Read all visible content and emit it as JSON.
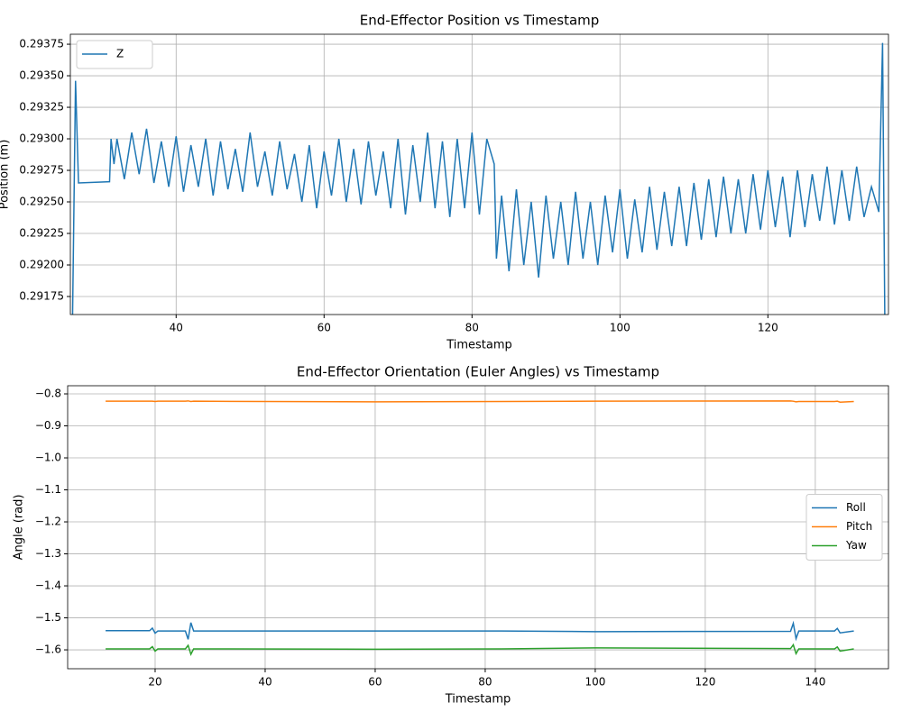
{
  "chart_data": [
    {
      "type": "line",
      "title": "End-Effector Position vs Timestamp",
      "x_label": "Timestamp",
      "y_label": "Position (m)",
      "xlim": [
        25.7,
        136.3
      ],
      "ylim": [
        0.291607,
        0.293829
      ],
      "grid": true,
      "legend": "upper left",
      "xticks": [
        40,
        60,
        80,
        100,
        120
      ],
      "yticks": [
        0.29175,
        {
          "value": 0.292,
          "label": "0.29200"
        },
        0.29225,
        {
          "value": 0.2925,
          "label": "0.29250"
        },
        0.29275,
        {
          "value": 0.293,
          "label": "0.29300"
        },
        0.29325,
        {
          "value": 0.2935,
          "label": "0.29350"
        },
        0.29375
      ],
      "x": [
        26.0,
        26.4,
        26.8,
        31.0,
        31.2,
        31.6,
        32,
        33,
        34,
        35,
        36,
        37,
        38,
        39,
        40,
        41,
        42,
        43,
        44,
        45,
        46,
        47,
        48,
        49,
        50,
        51,
        52,
        53,
        54,
        55,
        56,
        57,
        58,
        59,
        60,
        61,
        62,
        63,
        64,
        65,
        66,
        67,
        68,
        69,
        70,
        71,
        72,
        73,
        74,
        75,
        76,
        77,
        78,
        79,
        80,
        81,
        82,
        83,
        83.3,
        84,
        85,
        86,
        87,
        88,
        89,
        90,
        91,
        92,
        93,
        94,
        95,
        96,
        97,
        98,
        99,
        100,
        101,
        102,
        103,
        104,
        105,
        106,
        107,
        108,
        109,
        110,
        111,
        112,
        113,
        114,
        115,
        116,
        117,
        118,
        119,
        120,
        121,
        122,
        123,
        124,
        125,
        126,
        127,
        128,
        129,
        130,
        131,
        132,
        133,
        134,
        135,
        135.5,
        135.8
      ],
      "series": [
        {
          "name": "Z",
          "color": "#1f77b4",
          "values": [
            0.2916,
            0.29346,
            0.29265,
            0.29266,
            0.293,
            0.2928,
            0.293,
            0.29268,
            0.29305,
            0.29272,
            0.29308,
            0.29265,
            0.29298,
            0.29262,
            0.29302,
            0.29258,
            0.29295,
            0.29262,
            0.293,
            0.29255,
            0.29298,
            0.2926,
            0.29292,
            0.29258,
            0.29305,
            0.29262,
            0.2929,
            0.29255,
            0.29298,
            0.2926,
            0.29288,
            0.2925,
            0.29295,
            0.29245,
            0.2929,
            0.29255,
            0.293,
            0.2925,
            0.29292,
            0.29248,
            0.29298,
            0.29255,
            0.2929,
            0.29245,
            0.293,
            0.2924,
            0.29295,
            0.2925,
            0.29305,
            0.29245,
            0.29298,
            0.29238,
            0.293,
            0.29245,
            0.29305,
            0.2924,
            0.293,
            0.2928,
            0.29205,
            0.29255,
            0.29195,
            0.2926,
            0.292,
            0.2925,
            0.2919,
            0.29255,
            0.29205,
            0.2925,
            0.292,
            0.29258,
            0.29205,
            0.2925,
            0.292,
            0.29255,
            0.2921,
            0.2926,
            0.29205,
            0.29252,
            0.2921,
            0.29262,
            0.29212,
            0.29258,
            0.29215,
            0.29262,
            0.29215,
            0.29265,
            0.2922,
            0.29268,
            0.29222,
            0.2927,
            0.29225,
            0.29268,
            0.29225,
            0.29272,
            0.29228,
            0.29275,
            0.2923,
            0.2927,
            0.29222,
            0.29275,
            0.2923,
            0.29272,
            0.29235,
            0.29278,
            0.29232,
            0.29275,
            0.29235,
            0.29278,
            0.29238,
            0.29262,
            0.29242,
            0.29376,
            0.2916
          ]
        }
      ]
    },
    {
      "type": "line",
      "title": "End-Effector Orientation (Euler Angles) vs Timestamp",
      "x_label": "Timestamp",
      "y_label": "Angle (rad)",
      "xlim": [
        4.1,
        153.3
      ],
      "ylim": [
        -1.659,
        -0.7746
      ],
      "grid": true,
      "legend": "center right",
      "xticks": [
        20,
        40,
        60,
        80,
        100,
        120,
        140
      ],
      "yticks": [
        {
          "value": -1.6,
          "label": "−1.6"
        },
        {
          "value": -1.5,
          "label": "−1.5"
        },
        {
          "value": -1.4,
          "label": "−1.4"
        },
        {
          "value": -1.3,
          "label": "−1.3"
        },
        {
          "value": -1.2,
          "label": "−1.2"
        },
        {
          "value": -1.1,
          "label": "−1.1"
        },
        {
          "value": -1.0,
          "label": "−1.0"
        },
        {
          "value": -0.9,
          "label": "−0.9"
        },
        {
          "value": -0.8,
          "label": "−0.8"
        }
      ],
      "x": [
        11,
        19,
        19.5,
        20,
        20.5,
        25.5,
        26,
        26.5,
        27,
        60,
        83,
        100,
        135.5,
        136,
        136.5,
        137,
        143.5,
        144,
        144.5,
        147
      ],
      "series": [
        {
          "name": "Roll",
          "color": "#1f77b4",
          "values": [
            -1.54,
            -1.54,
            -1.532,
            -1.548,
            -1.541,
            -1.541,
            -1.567,
            -1.515,
            -1.541,
            -1.541,
            -1.541,
            -1.543,
            -1.542,
            -1.517,
            -1.565,
            -1.541,
            -1.541,
            -1.533,
            -1.547,
            -1.541
          ]
        },
        {
          "name": "Pitch",
          "color": "#ff7f0e",
          "values": [
            -0.823,
            -0.823,
            -0.823,
            -0.824,
            -0.823,
            -0.823,
            -0.822,
            -0.824,
            -0.823,
            -0.825,
            -0.824,
            -0.823,
            -0.822,
            -0.823,
            -0.825,
            -0.824,
            -0.824,
            -0.823,
            -0.826,
            -0.824
          ]
        },
        {
          "name": "Yaw",
          "color": "#2ca02c",
          "values": [
            -1.597,
            -1.597,
            -1.59,
            -1.604,
            -1.597,
            -1.597,
            -1.586,
            -1.614,
            -1.597,
            -1.598,
            -1.597,
            -1.594,
            -1.596,
            -1.584,
            -1.612,
            -1.597,
            -1.597,
            -1.591,
            -1.604,
            -1.597
          ]
        }
      ]
    }
  ]
}
